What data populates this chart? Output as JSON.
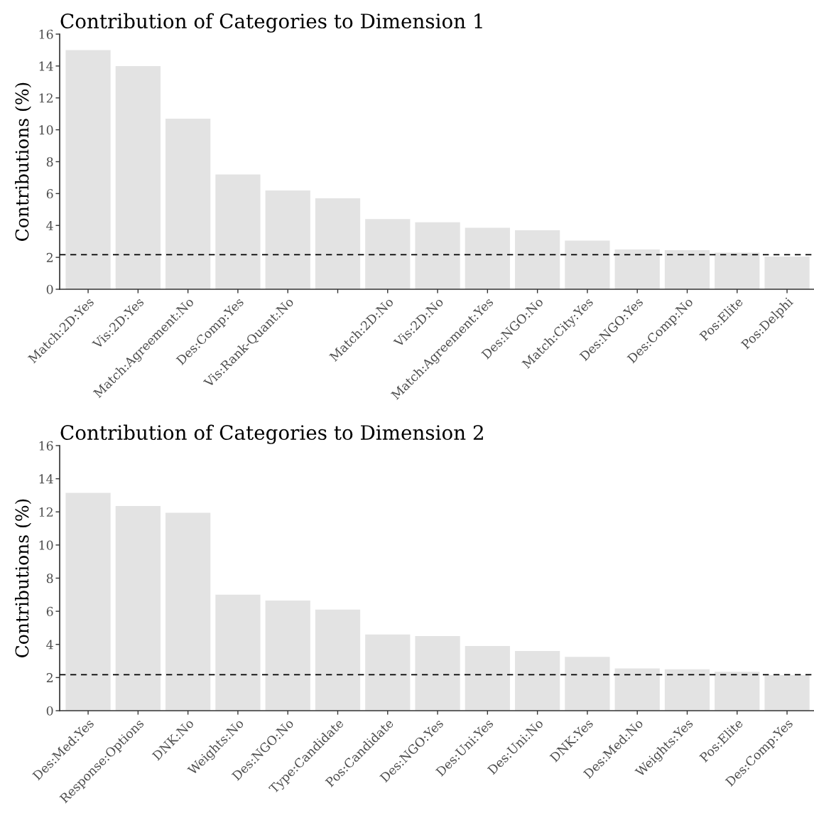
{
  "chart_data": [
    {
      "type": "bar",
      "title": "Contribution of Categories to Dimension 1",
      "ylabel": "Contributions (%)",
      "categories": [
        "Match:2D:Yes",
        "Vis:2D:Yes",
        "Match:Agreement:No",
        "Des:Comp:Yes",
        "Vis:Rank-Quant:No",
        null,
        "Match:2D:No",
        "Vis:2D:No",
        "Match:Agreement:Yes",
        "Des:NGO:No",
        "Match:City:Yes",
        "Des:NGO:Yes",
        "Des:Comp:No",
        "Pos:Elite",
        "Pos:Delphi"
      ],
      "values": [
        15.0,
        14.0,
        10.7,
        7.2,
        6.2,
        5.7,
        4.4,
        4.2,
        3.85,
        3.7,
        3.05,
        2.5,
        2.45,
        2.3,
        2.05
      ],
      "color": "#e3e3e3",
      "ylim": [
        0,
        16
      ],
      "yticks": [
        0,
        2,
        4,
        6,
        8,
        10,
        12,
        14,
        16
      ],
      "grid": false,
      "ref_lines": [
        {
          "axis": "y",
          "value": 2.17,
          "color": "#000000",
          "line_style": "dashed"
        }
      ]
    },
    {
      "type": "bar",
      "title": "Contribution of Categories to Dimension 2",
      "ylabel": "Contributions (%)",
      "categories": [
        "Des:Med:Yes",
        "Response:Options",
        "DNK:No",
        "Weights:No",
        "Des:NGO:No",
        "Type:Candidate",
        "Pos:Candidate",
        "Des:NGO:Yes",
        "Des:Uni:Yes",
        "Des:Uni:No",
        "DNK:Yes",
        "Des:Med:No",
        "Weights:Yes",
        "Pos:Elite",
        "Des:Comp:Yes"
      ],
      "values": [
        13.15,
        12.35,
        11.95,
        7.0,
        6.65,
        6.1,
        4.6,
        4.5,
        3.9,
        3.6,
        3.25,
        2.55,
        2.5,
        2.35,
        2.15
      ],
      "color": "#e3e3e3",
      "ylim": [
        0,
        16
      ],
      "yticks": [
        0,
        2,
        4,
        6,
        8,
        10,
        12,
        14,
        16
      ],
      "grid": false,
      "ref_lines": [
        {
          "axis": "y",
          "value": 2.17,
          "color": "#000000",
          "line_style": "dashed"
        }
      ]
    }
  ]
}
